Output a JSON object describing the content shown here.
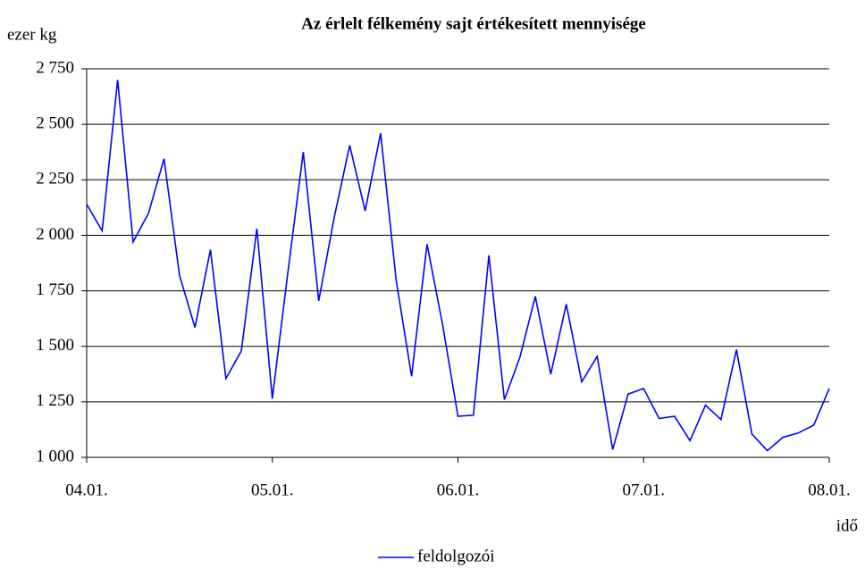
{
  "chart_data": {
    "type": "line",
    "title": "Az érlelt félkemény sajt értékesített mennyisége",
    "y_label": "ezer kg",
    "x_label": "idő",
    "categories": [
      "04.01.",
      null,
      null,
      null,
      null,
      null,
      null,
      null,
      null,
      null,
      null,
      null,
      "05.01.",
      null,
      null,
      null,
      null,
      null,
      null,
      null,
      null,
      null,
      null,
      null,
      "06.01.",
      null,
      null,
      null,
      null,
      null,
      null,
      null,
      null,
      null,
      null,
      null,
      "07.01.",
      null,
      null,
      null,
      null,
      null,
      null,
      null,
      null,
      null,
      null,
      null,
      "08.01."
    ],
    "series": [
      {
        "name": "feldolgozói",
        "color": "#0000ff",
        "values": [
          2140,
          2020,
          2700,
          1970,
          2100,
          2345,
          1820,
          1585,
          1935,
          1355,
          1480,
          2030,
          1265,
          1830,
          2375,
          1705,
          2080,
          2405,
          2110,
          2460,
          1800,
          1365,
          1960,
          1600,
          1185,
          1190,
          1910,
          1260,
          1450,
          1725,
          1375,
          1690,
          1340,
          1455,
          1035,
          1285,
          1310,
          1175,
          1185,
          1075,
          1235,
          1170,
          1485,
          1105,
          1030,
          1090,
          1110,
          1145,
          1310
        ]
      }
    ],
    "ylim": [
      1000,
      2750
    ],
    "yticks": [
      {
        "value": 1000,
        "label": "1 000"
      },
      {
        "value": 1250,
        "label": "1 250"
      },
      {
        "value": 1500,
        "label": "1 500"
      },
      {
        "value": 1750,
        "label": "1 750"
      },
      {
        "value": 2000,
        "label": "2 000"
      },
      {
        "value": 2250,
        "label": "2 250"
      },
      {
        "value": 2500,
        "label": "2 500"
      },
      {
        "value": 2750,
        "label": "2 750"
      }
    ],
    "grid": true,
    "legend": "bottom"
  }
}
